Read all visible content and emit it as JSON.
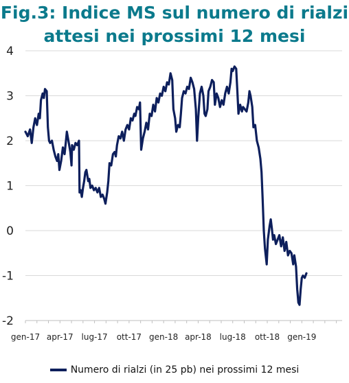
{
  "chart_data": {
    "type": "line",
    "title": "Fig.3: Indice MS sul numero di rialzi attesi nei prossimi 12 mesi",
    "x_tick_labels": [
      "gen-17",
      "apr-17",
      "lug-17",
      "ott-17",
      "gen-18",
      "apr-18",
      "lug-18",
      "ott-18",
      "gen-19"
    ],
    "y_tick_labels": [
      "4",
      "3",
      "2",
      "1",
      "0",
      "-1",
      "-2"
    ],
    "ylim": [
      -2,
      4
    ],
    "yticks": [
      4,
      3,
      2,
      1,
      0,
      -1,
      -2
    ],
    "xlim": [
      0,
      27.5
    ],
    "grid": "horizontal",
    "legend_position": "bottom",
    "series": [
      {
        "name": "Numero di rialzi  (in 25 pb) nei prossimi 12 mesi",
        "color": "#0d1f5c",
        "points": [
          [
            0.0,
            2.2
          ],
          [
            0.2,
            2.1
          ],
          [
            0.4,
            2.25
          ],
          [
            0.55,
            1.95
          ],
          [
            0.7,
            2.3
          ],
          [
            0.85,
            2.5
          ],
          [
            1.0,
            2.35
          ],
          [
            1.15,
            2.6
          ],
          [
            1.25,
            2.5
          ],
          [
            1.35,
            2.9
          ],
          [
            1.5,
            3.05
          ],
          [
            1.6,
            2.95
          ],
          [
            1.7,
            3.15
          ],
          [
            1.85,
            3.1
          ],
          [
            1.95,
            2.3
          ],
          [
            2.05,
            2.0
          ],
          [
            2.15,
            1.95
          ],
          [
            2.3,
            2.0
          ],
          [
            2.45,
            1.8
          ],
          [
            2.6,
            1.65
          ],
          [
            2.75,
            1.55
          ],
          [
            2.85,
            1.7
          ],
          [
            2.95,
            1.35
          ],
          [
            3.1,
            1.55
          ],
          [
            3.25,
            1.85
          ],
          [
            3.4,
            1.7
          ],
          [
            3.5,
            1.95
          ],
          [
            3.6,
            2.2
          ],
          [
            3.7,
            2.05
          ],
          [
            3.8,
            1.9
          ],
          [
            3.9,
            1.75
          ],
          [
            4.0,
            1.45
          ],
          [
            4.05,
            1.9
          ],
          [
            4.2,
            1.8
          ],
          [
            4.35,
            1.95
          ],
          [
            4.5,
            1.9
          ],
          [
            4.65,
            2.0
          ],
          [
            4.7,
            0.85
          ],
          [
            4.8,
            0.9
          ],
          [
            4.9,
            0.75
          ],
          [
            5.0,
            0.95
          ],
          [
            5.1,
            1.1
          ],
          [
            5.2,
            1.3
          ],
          [
            5.3,
            1.35
          ],
          [
            5.45,
            1.1
          ],
          [
            5.55,
            1.15
          ],
          [
            5.65,
            0.95
          ],
          [
            5.8,
            1.0
          ],
          [
            5.95,
            0.9
          ],
          [
            6.1,
            0.95
          ],
          [
            6.25,
            0.85
          ],
          [
            6.4,
            0.95
          ],
          [
            6.55,
            0.75
          ],
          [
            6.7,
            0.8
          ],
          [
            6.85,
            0.7
          ],
          [
            6.95,
            0.6
          ],
          [
            7.1,
            0.85
          ],
          [
            7.2,
            1.1
          ],
          [
            7.3,
            1.5
          ],
          [
            7.45,
            1.45
          ],
          [
            7.6,
            1.7
          ],
          [
            7.75,
            1.75
          ],
          [
            7.85,
            1.65
          ],
          [
            7.95,
            1.9
          ],
          [
            8.1,
            2.1
          ],
          [
            8.25,
            2.05
          ],
          [
            8.4,
            2.2
          ],
          [
            8.55,
            2.0
          ],
          [
            8.7,
            2.25
          ],
          [
            8.85,
            2.35
          ],
          [
            9.0,
            2.25
          ],
          [
            9.15,
            2.5
          ],
          [
            9.3,
            2.45
          ],
          [
            9.45,
            2.6
          ],
          [
            9.55,
            2.55
          ],
          [
            9.7,
            2.75
          ],
          [
            9.85,
            2.7
          ],
          [
            9.95,
            2.85
          ],
          [
            10.05,
            1.8
          ],
          [
            10.2,
            2.05
          ],
          [
            10.35,
            2.2
          ],
          [
            10.5,
            2.4
          ],
          [
            10.65,
            2.25
          ],
          [
            10.8,
            2.6
          ],
          [
            10.95,
            2.55
          ],
          [
            11.1,
            2.8
          ],
          [
            11.25,
            2.65
          ],
          [
            11.4,
            2.95
          ],
          [
            11.55,
            2.85
          ],
          [
            11.7,
            3.05
          ],
          [
            11.85,
            3.0
          ],
          [
            12.0,
            3.2
          ],
          [
            12.15,
            3.1
          ],
          [
            12.3,
            3.3
          ],
          [
            12.45,
            3.25
          ],
          [
            12.6,
            3.5
          ],
          [
            12.75,
            3.35
          ],
          [
            12.85,
            2.7
          ],
          [
            13.0,
            2.5
          ],
          [
            13.1,
            2.2
          ],
          [
            13.25,
            2.35
          ],
          [
            13.4,
            2.3
          ],
          [
            13.5,
            2.6
          ],
          [
            13.6,
            2.95
          ],
          [
            13.75,
            3.1
          ],
          [
            13.9,
            3.05
          ],
          [
            14.05,
            3.2
          ],
          [
            14.2,
            3.15
          ],
          [
            14.35,
            3.4
          ],
          [
            14.5,
            3.3
          ],
          [
            14.65,
            3.15
          ],
          [
            14.8,
            2.7
          ],
          [
            14.9,
            2.0
          ],
          [
            15.0,
            2.5
          ],
          [
            15.15,
            3.05
          ],
          [
            15.3,
            3.2
          ],
          [
            15.45,
            3.0
          ],
          [
            15.55,
            2.6
          ],
          [
            15.65,
            2.55
          ],
          [
            15.8,
            2.7
          ],
          [
            15.9,
            3.1
          ],
          [
            16.05,
            3.2
          ],
          [
            16.2,
            3.35
          ],
          [
            16.35,
            3.3
          ],
          [
            16.45,
            2.8
          ],
          [
            16.6,
            3.05
          ],
          [
            16.75,
            2.95
          ],
          [
            16.9,
            2.75
          ],
          [
            17.05,
            2.9
          ],
          [
            17.2,
            2.8
          ],
          [
            17.35,
            3.05
          ],
          [
            17.5,
            3.2
          ],
          [
            17.65,
            3.05
          ],
          [
            17.8,
            3.3
          ],
          [
            17.9,
            3.6
          ],
          [
            18.0,
            3.55
          ],
          [
            18.15,
            3.65
          ],
          [
            18.3,
            3.6
          ],
          [
            18.4,
            3.1
          ],
          [
            18.5,
            2.6
          ],
          [
            18.65,
            2.8
          ],
          [
            18.8,
            2.65
          ],
          [
            18.9,
            2.75
          ],
          [
            19.05,
            2.7
          ],
          [
            19.2,
            2.65
          ],
          [
            19.35,
            2.85
          ],
          [
            19.45,
            3.1
          ],
          [
            19.55,
            3.0
          ],
          [
            19.7,
            2.75
          ],
          [
            19.8,
            2.3
          ],
          [
            19.95,
            2.35
          ],
          [
            20.1,
            2.0
          ],
          [
            20.25,
            1.85
          ],
          [
            20.4,
            1.6
          ],
          [
            20.5,
            1.3
          ],
          [
            20.6,
            0.7
          ],
          [
            20.7,
            0.0
          ],
          [
            20.8,
            -0.4
          ],
          [
            20.95,
            -0.75
          ],
          [
            21.05,
            -0.2
          ],
          [
            21.2,
            0.1
          ],
          [
            21.3,
            0.25
          ],
          [
            21.4,
            0.05
          ],
          [
            21.5,
            -0.2
          ],
          [
            21.6,
            -0.1
          ],
          [
            21.75,
            -0.3
          ],
          [
            21.9,
            -0.2
          ],
          [
            22.05,
            -0.1
          ],
          [
            22.2,
            -0.35
          ],
          [
            22.35,
            -0.15
          ],
          [
            22.5,
            -0.45
          ],
          [
            22.65,
            -0.25
          ],
          [
            22.8,
            -0.55
          ],
          [
            22.95,
            -0.45
          ],
          [
            23.1,
            -0.5
          ],
          [
            23.25,
            -0.75
          ],
          [
            23.35,
            -0.55
          ],
          [
            23.5,
            -0.8
          ],
          [
            23.6,
            -1.3
          ],
          [
            23.7,
            -1.6
          ],
          [
            23.8,
            -1.65
          ],
          [
            23.9,
            -1.3
          ],
          [
            24.0,
            -1.05
          ],
          [
            24.1,
            -1.0
          ],
          [
            24.25,
            -1.05
          ],
          [
            24.4,
            -0.95
          ]
        ]
      }
    ]
  }
}
